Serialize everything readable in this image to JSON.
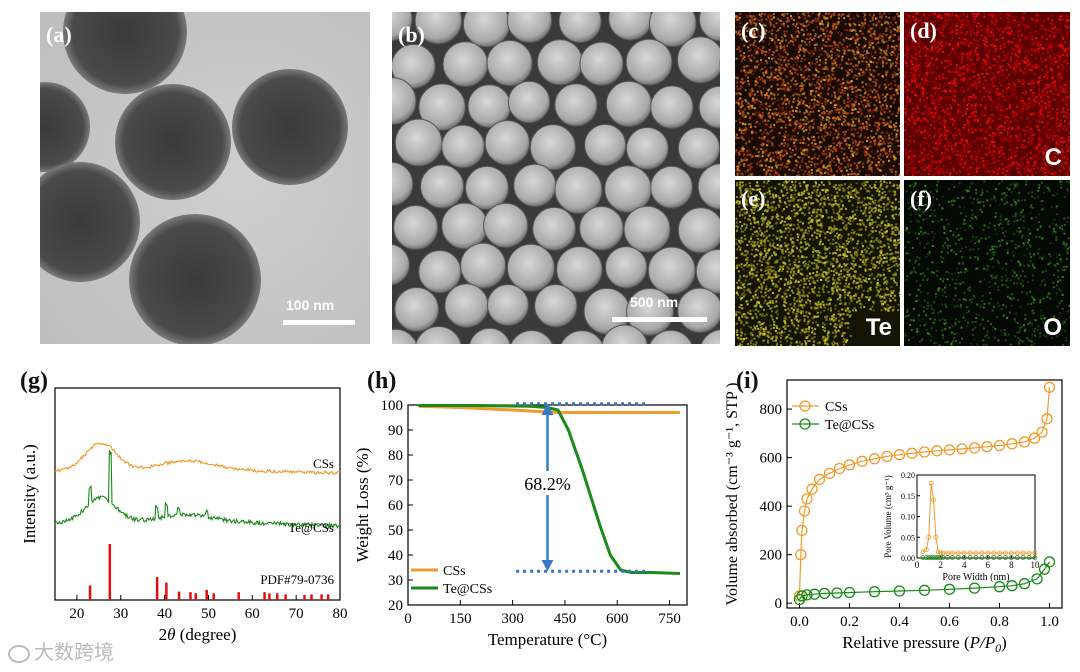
{
  "panels": {
    "a": {
      "label": "(a)",
      "scale": "100 nm"
    },
    "b": {
      "label": "(b)",
      "scale": "500 nm"
    },
    "c": {
      "label": "(c)"
    },
    "d": {
      "label": "(d)",
      "element": "C"
    },
    "e": {
      "label": "(e)",
      "element": "Te"
    },
    "f": {
      "label": "(f)",
      "element": "O"
    },
    "g": {
      "label": "(g)"
    },
    "h": {
      "label": "(h)"
    },
    "i": {
      "label": "(i)"
    }
  },
  "watermark": "大数跨境",
  "colors": {
    "css": "#f39a2c",
    "te": "#1a8a1a",
    "pdf": "#e01010",
    "arrow": "#3a78c8",
    "dotline": "#3a6fc8"
  },
  "chart_data": [
    {
      "id": "g",
      "type": "line",
      "xlabel_prefix": "2",
      "xlabel_theta": "θ",
      "xlabel_suffix": " (degree)",
      "ylabel": "Intensity (a.u.)",
      "xlim": [
        15,
        80
      ],
      "xticks": [
        "20",
        "30",
        "40",
        "50",
        "60",
        "70",
        "80"
      ],
      "series_labels": [
        "CSs",
        "Te@CSs",
        "PDF#79-0736"
      ],
      "pdf_peaks": [
        {
          "x": 23.0,
          "h": 0.26
        },
        {
          "x": 27.5,
          "h": 1.0
        },
        {
          "x": 38.3,
          "h": 0.41
        },
        {
          "x": 40.4,
          "h": 0.31
        },
        {
          "x": 43.3,
          "h": 0.15
        },
        {
          "x": 45.9,
          "h": 0.14
        },
        {
          "x": 47.1,
          "h": 0.12
        },
        {
          "x": 49.6,
          "h": 0.18
        },
        {
          "x": 51.2,
          "h": 0.12
        },
        {
          "x": 56.9,
          "h": 0.14
        },
        {
          "x": 62.8,
          "h": 0.14
        },
        {
          "x": 63.9,
          "h": 0.12
        },
        {
          "x": 65.7,
          "h": 0.12
        },
        {
          "x": 67.6,
          "h": 0.1
        },
        {
          "x": 71.9,
          "h": 0.09
        },
        {
          "x": 73.5,
          "h": 0.1
        },
        {
          "x": 75.8,
          "h": 0.1
        },
        {
          "x": 77.3,
          "h": 0.1
        }
      ]
    },
    {
      "id": "h",
      "type": "line",
      "xlabel": "Temperature (°C)",
      "ylabel": "Weight Loss (%)",
      "xlim": [
        0,
        800
      ],
      "ylim": [
        20,
        100
      ],
      "xticks": [
        "0",
        "150",
        "300",
        "450",
        "600",
        "750"
      ],
      "yticks": [
        "20",
        "30",
        "40",
        "50",
        "60",
        "70",
        "80",
        "90",
        "100"
      ],
      "annotation": "68.2%",
      "legend": [
        "CSs",
        "Te@CSs"
      ],
      "series": [
        {
          "name": "CSs",
          "x": [
            30,
            150,
            300,
            400,
            450,
            600,
            780
          ],
          "y": [
            99.5,
            99.0,
            98.0,
            97.2,
            97.0,
            97.0,
            97.0
          ]
        },
        {
          "name": "Te@CSs",
          "x": [
            30,
            200,
            350,
            400,
            430,
            460,
            500,
            550,
            580,
            610,
            640,
            700,
            780
          ],
          "y": [
            99.8,
            99.8,
            99.5,
            99.0,
            98.0,
            90.0,
            74.0,
            52.0,
            40.0,
            34.0,
            33.0,
            33.0,
            32.6
          ]
        }
      ]
    },
    {
      "id": "i",
      "type": "scatter",
      "xlabel_prefix": "Relative pressure (",
      "xlabel_var": "P/P",
      "xlabel_sub": "0",
      "xlabel_suffix": ")",
      "ylabel": "Volume absorbed (cm⁻³ g⁻¹, STP )",
      "xlim": [
        -0.05,
        1.05
      ],
      "ylim": [
        -20,
        920
      ],
      "xticks": [
        "0.0",
        "0.2",
        "0.4",
        "0.6",
        "0.8",
        "1.0"
      ],
      "yticks": [
        "0",
        "200",
        "400",
        "600",
        "800"
      ],
      "legend": [
        "CSs",
        "Te@CSs"
      ],
      "series": [
        {
          "name": "CSs",
          "x": [
            0.0,
            0.005,
            0.01,
            0.02,
            0.03,
            0.05,
            0.08,
            0.12,
            0.16,
            0.2,
            0.25,
            0.3,
            0.35,
            0.4,
            0.45,
            0.5,
            0.55,
            0.6,
            0.65,
            0.7,
            0.75,
            0.8,
            0.85,
            0.9,
            0.94,
            0.97,
            0.99,
            1.0
          ],
          "y": [
            30,
            200,
            300,
            380,
            430,
            470,
            510,
            535,
            555,
            570,
            585,
            595,
            605,
            612,
            618,
            623,
            628,
            632,
            636,
            640,
            645,
            650,
            657,
            665,
            680,
            705,
            760,
            890
          ]
        },
        {
          "name": "Te@CSs",
          "x": [
            0.0,
            0.01,
            0.03,
            0.06,
            0.1,
            0.15,
            0.2,
            0.3,
            0.4,
            0.5,
            0.6,
            0.7,
            0.8,
            0.85,
            0.9,
            0.95,
            0.98,
            1.0
          ],
          "y": [
            15,
            30,
            34,
            37,
            40,
            42,
            44,
            47,
            50,
            53,
            57,
            62,
            68,
            72,
            80,
            100,
            140,
            170
          ]
        }
      ],
      "inset": {
        "xlabel": "Pore Width (nm)",
        "ylabel": "Pore Volume (cm³ g⁻¹)",
        "xticks": [
          "0",
          "2",
          "4",
          "6",
          "8",
          "10"
        ],
        "yticks": [
          "0.00",
          "0.05",
          "0.10",
          "0.15",
          "0.20"
        ],
        "xlim": [
          0,
          10
        ],
        "ylim": [
          0,
          0.2
        ]
      }
    }
  ]
}
